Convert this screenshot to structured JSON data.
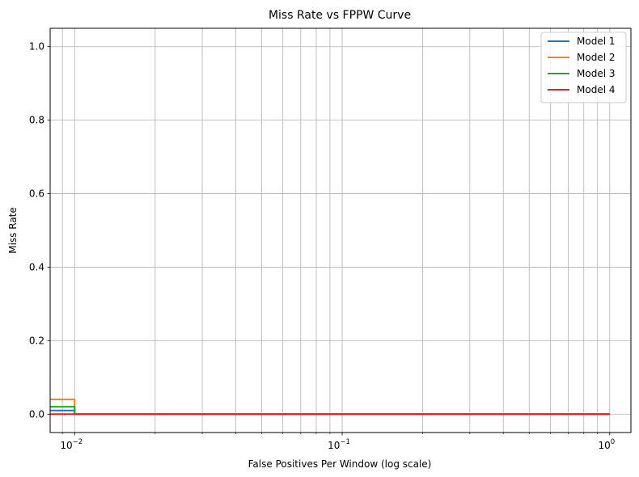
{
  "chart_data": {
    "type": "line",
    "title": "Miss Rate vs FPPW Curve",
    "xlabel": "False Positives Per Window (log scale)",
    "ylabel": "Miss Rate",
    "xscale": "log",
    "xlim": [
      0.0081,
      1.2
    ],
    "ylim": [
      -0.05,
      1.05
    ],
    "grid": "major and minor (x), major (y)",
    "legend_position": "upper right",
    "x_ticks": [
      {
        "value": 0.01,
        "base": "10",
        "exp": "−2"
      },
      {
        "value": 0.1,
        "base": "10",
        "exp": "−1"
      },
      {
        "value": 1,
        "base": "10",
        "exp": "0"
      }
    ],
    "x_minor_ticks": [
      0.009,
      0.02,
      0.03,
      0.04,
      0.05,
      0.06,
      0.07,
      0.08,
      0.09,
      0.2,
      0.3,
      0.4,
      0.5,
      0.6,
      0.7,
      0.8,
      0.9
    ],
    "y_ticks": [
      {
        "value": 0.0,
        "label": "0.0"
      },
      {
        "value": 0.2,
        "label": "0.2"
      },
      {
        "value": 0.4,
        "label": "0.4"
      },
      {
        "value": 0.6,
        "label": "0.6"
      },
      {
        "value": 0.8,
        "label": "0.8"
      },
      {
        "value": 1.0,
        "label": "1.0"
      }
    ],
    "series": [
      {
        "name": "Model 1",
        "color": "#1f77b4",
        "x": [
          0.0081,
          0.01,
          0.01,
          1.0
        ],
        "y": [
          0.01,
          0.01,
          0.0,
          0.0
        ]
      },
      {
        "name": "Model 2",
        "color": "#ff7f0e",
        "x": [
          0.0081,
          0.01,
          0.01,
          1.0
        ],
        "y": [
          0.04,
          0.04,
          0.0,
          0.0
        ]
      },
      {
        "name": "Model 3",
        "color": "#2ca02c",
        "x": [
          0.0081,
          0.01,
          0.01,
          1.0
        ],
        "y": [
          0.02,
          0.02,
          0.0,
          0.0
        ]
      },
      {
        "name": "Model 4",
        "color": "#d62728",
        "x": [
          0.0081,
          0.01,
          0.01,
          1.0
        ],
        "y": [
          0.0,
          0.0,
          0.0,
          0.0
        ]
      }
    ]
  }
}
